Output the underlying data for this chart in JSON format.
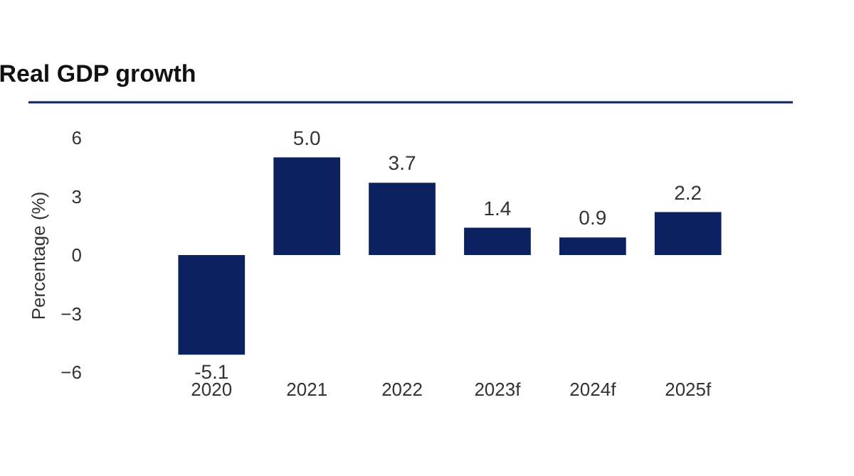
{
  "chart_data": {
    "type": "bar",
    "title": "Real GDP growth",
    "ylabel": "Percentage (%)",
    "categories": [
      "2020",
      "2021",
      "2022",
      "2023f",
      "2024f",
      "2025f"
    ],
    "values": [
      -5.1,
      5.0,
      3.7,
      1.4,
      0.9,
      2.2
    ],
    "color": "#0b2160",
    "ylim": [
      -6,
      6
    ],
    "yticks": [
      -6,
      -3,
      0,
      3,
      6
    ],
    "value_labels": [
      "-5.1",
      "5.0",
      "3.7",
      "1.4",
      "0.9",
      "2.2"
    ],
    "grid": false
  }
}
